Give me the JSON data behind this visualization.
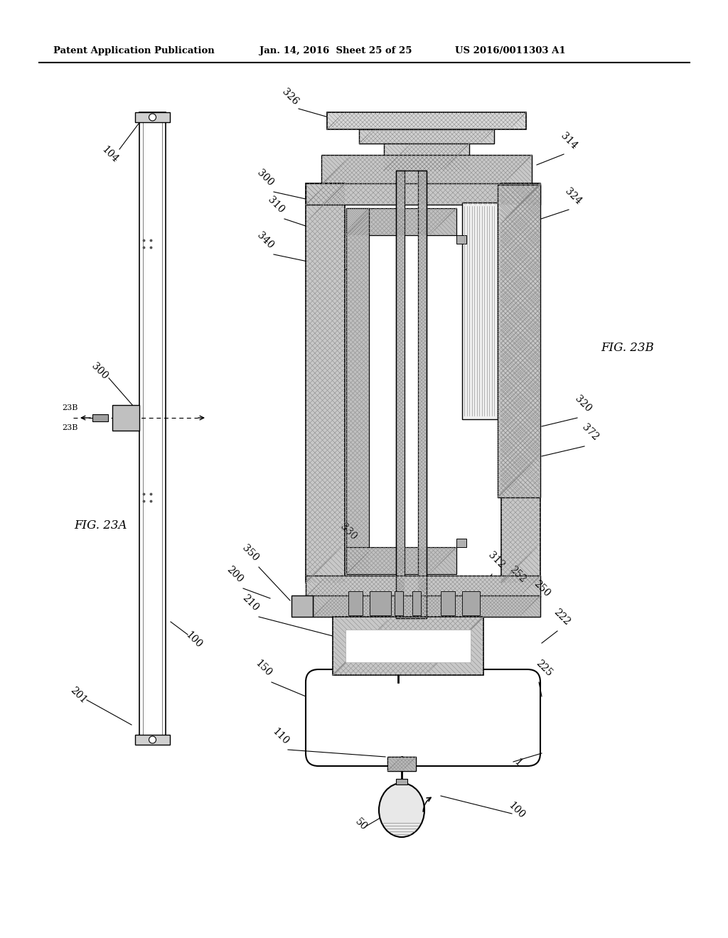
{
  "background_color": "#ffffff",
  "header_left": "Patent Application Publication",
  "header_mid": "Jan. 14, 2016  Sheet 25 of 25",
  "header_right": "US 2016/0011303 A1",
  "fig_label_A": "FIG. 23A",
  "fig_label_B": "FIG. 23B",
  "line_color": "#000000",
  "hatch_color": "#888888"
}
